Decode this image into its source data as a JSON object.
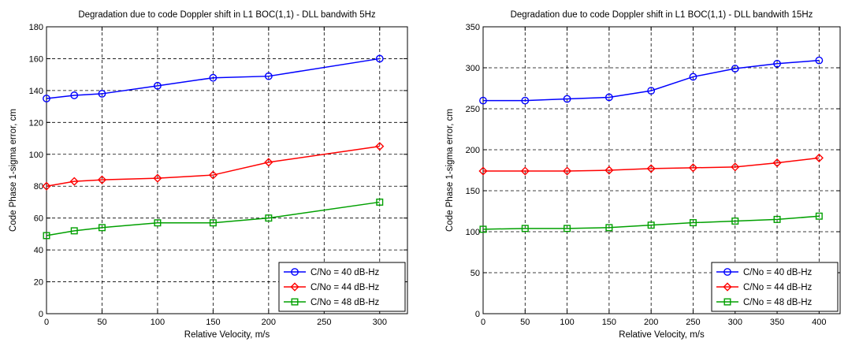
{
  "chart_data": [
    {
      "type": "line",
      "title": "Degradation due to code Doppler shift in L1 BOC(1,1) - DLL bandwith 5Hz",
      "xlabel": "Relative Velocity, m/s",
      "ylabel": "Code Phase 1-sigma error, cm",
      "xlim": [
        0,
        325
      ],
      "ylim": [
        0,
        180
      ],
      "xticks": [
        0,
        50,
        100,
        150,
        200,
        250,
        300
      ],
      "yticks": [
        0,
        20,
        40,
        60,
        80,
        100,
        120,
        140,
        160,
        180
      ],
      "grid": true,
      "legend_position": "bottom-right",
      "series": [
        {
          "name": "C/No = 40 dB-Hz",
          "color": "#0000ff",
          "marker": "circle",
          "x": [
            0,
            25,
            50,
            100,
            150,
            200,
            300
          ],
          "y": [
            135,
            137,
            138,
            143,
            148,
            149,
            160
          ]
        },
        {
          "name": "C/No = 44 dB-Hz",
          "color": "#ff0000",
          "marker": "diamond",
          "x": [
            0,
            25,
            50,
            100,
            150,
            200,
            300
          ],
          "y": [
            80,
            83,
            84,
            85,
            87,
            95,
            105
          ]
        },
        {
          "name": "C/No = 48 dB-Hz",
          "color": "#00a000",
          "marker": "square",
          "x": [
            0,
            25,
            50,
            100,
            150,
            200,
            300
          ],
          "y": [
            49,
            52,
            54,
            57,
            57,
            60,
            70
          ]
        }
      ]
    },
    {
      "type": "line",
      "title": "Degradation due to code Doppler shift in L1 BOC(1,1) - DLL bandwith 15Hz",
      "xlabel": "Relative Velocity, m/s",
      "ylabel": "Code Phase 1-sigma error, cm",
      "xlim": [
        0,
        425
      ],
      "ylim": [
        0,
        350
      ],
      "xticks": [
        0,
        50,
        100,
        150,
        200,
        250,
        300,
        350,
        400
      ],
      "yticks": [
        0,
        50,
        100,
        150,
        200,
        250,
        300,
        350
      ],
      "grid": true,
      "legend_position": "bottom-right",
      "series": [
        {
          "name": "C/No = 40 dB-Hz",
          "color": "#0000ff",
          "marker": "circle",
          "x": [
            0,
            50,
            100,
            150,
            200,
            250,
            300,
            350,
            400
          ],
          "y": [
            260,
            260,
            262,
            264,
            272,
            289,
            299,
            305,
            309
          ]
        },
        {
          "name": "C/No = 44 dB-Hz",
          "color": "#ff0000",
          "marker": "diamond",
          "x": [
            0,
            50,
            100,
            150,
            200,
            250,
            300,
            350,
            400
          ],
          "y": [
            174,
            174,
            174,
            175,
            177,
            178,
            179,
            184,
            190
          ]
        },
        {
          "name": "C/No = 48 dB-Hz",
          "color": "#00a000",
          "marker": "square",
          "x": [
            0,
            50,
            100,
            150,
            200,
            250,
            300,
            350,
            400
          ],
          "y": [
            103,
            104,
            104,
            105,
            108,
            111,
            113,
            115,
            119
          ]
        }
      ]
    }
  ]
}
